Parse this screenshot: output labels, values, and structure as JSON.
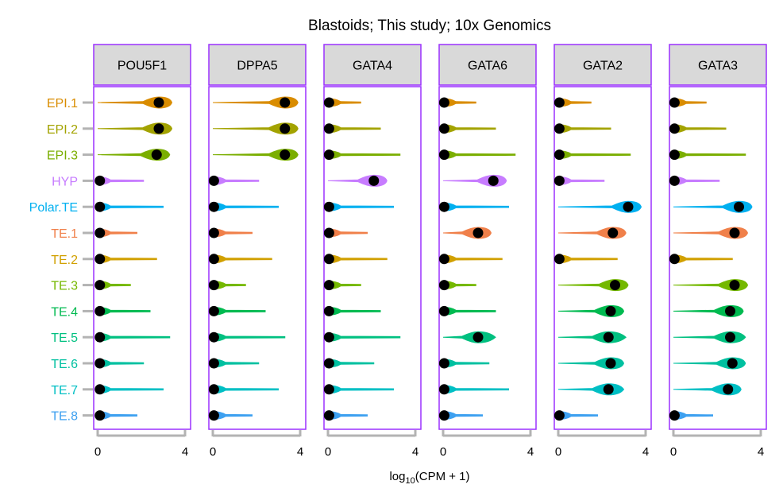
{
  "chart_data": {
    "type": "violin",
    "title": "Blastoids; This study; 10x Genomics",
    "xlabel_prefix": "log",
    "xlabel_sub": "10",
    "xlabel_suffix": "(CPM + 1)",
    "xlim": [
      0,
      4.3
    ],
    "xticks": [
      0,
      4
    ],
    "xtick_labels": [
      "0",
      "4"
    ],
    "panel_border_color": "#9B30FF",
    "strip_fill": "#D9D9D9",
    "panels": [
      "POU5F1",
      "DPPA5",
      "GATA4",
      "GATA6",
      "GATA2",
      "GATA3"
    ],
    "categories": [
      {
        "label": "EPI.1",
        "color": "#D98C00"
      },
      {
        "label": "EPI.2",
        "color": "#A3A300"
      },
      {
        "label": "EPI.3",
        "color": "#7AAE00"
      },
      {
        "label": "HYP",
        "color": "#C77CFF"
      },
      {
        "label": "Polar.TE",
        "color": "#00B0F0"
      },
      {
        "label": "TE.1",
        "color": "#F0804A"
      },
      {
        "label": "TE.2",
        "color": "#D1A000"
      },
      {
        "label": "TE.3",
        "color": "#74B800"
      },
      {
        "label": "TE.4",
        "color": "#00BA50"
      },
      {
        "label": "TE.5",
        "color": "#00C080"
      },
      {
        "label": "TE.6",
        "color": "#00C0A0"
      },
      {
        "label": "TE.7",
        "color": "#00BFC4"
      },
      {
        "label": "TE.8",
        "color": "#3DA0F0"
      }
    ],
    "medians": [
      [
        2.8,
        2.8,
        2.7,
        0.1,
        0.1,
        0.1,
        0.1,
        0.1,
        0.1,
        0.1,
        0.1,
        0.1,
        0.1
      ],
      [
        3.3,
        3.3,
        3.3,
        0.05,
        0.05,
        0.05,
        0.05,
        0.05,
        0.05,
        0.05,
        0.05,
        0.05,
        0.05
      ],
      [
        0.05,
        0.05,
        0.05,
        2.1,
        0.05,
        0.05,
        0.05,
        0.05,
        0.05,
        0.05,
        0.05,
        0.05,
        0.05
      ],
      [
        0.05,
        0.05,
        0.05,
        2.3,
        0.05,
        1.6,
        0.05,
        0.05,
        0.05,
        1.6,
        0.05,
        0.05,
        0.05
      ],
      [
        0.05,
        0.05,
        0.05,
        0.05,
        3.2,
        2.5,
        0.05,
        2.6,
        2.4,
        2.3,
        2.4,
        2.3,
        0.05
      ],
      [
        0.05,
        0.05,
        0.05,
        0.05,
        3.0,
        2.8,
        0.05,
        2.8,
        2.6,
        2.6,
        2.7,
        2.5,
        0.05
      ]
    ]
  }
}
